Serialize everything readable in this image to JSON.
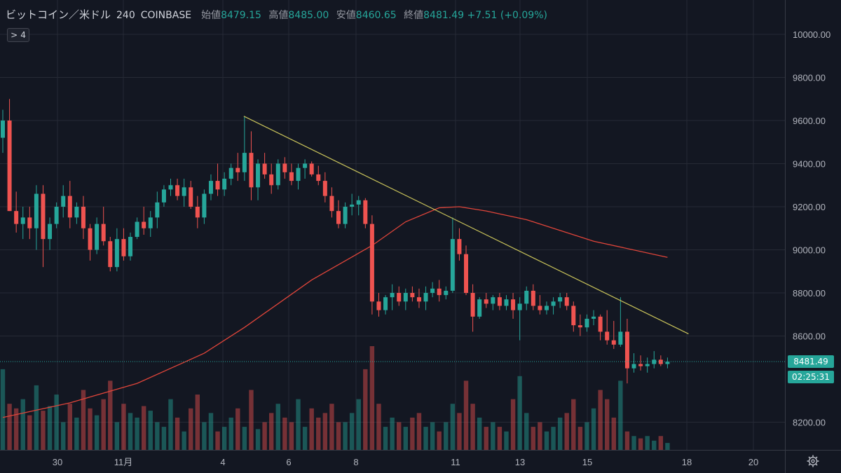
{
  "legend": {
    "symbol": "ビットコイン／米ドル",
    "interval": "240",
    "exchange": "COINBASE",
    "open_label": "始値",
    "open": "8479.15",
    "high_label": "高値",
    "high": "8485.00",
    "low_label": "安値",
    "low": "8460.65",
    "close_label": "終値",
    "close": "8481.49",
    "change": "+7.51 (+0.09%)"
  },
  "indicator_toggle": {
    "arrow": ">",
    "count": "4"
  },
  "last_price_tag": "8481.49",
  "countdown_tag": "02:25:31",
  "colors": {
    "background": "#131722",
    "up": "#26a69a",
    "down": "#ef5350",
    "ma": "#e0453a",
    "trendline": "#c8c25a",
    "grid": "#262a35",
    "axis_text": "#b2b5be"
  },
  "icons": {
    "settings": "gear-icon"
  },
  "chart_data": {
    "type": "candlestick",
    "y_axis": {
      "ticks": [
        10000,
        9800,
        9600,
        9400,
        9200,
        9000,
        8800,
        8600,
        8200
      ],
      "tick_labels": [
        "10000.00",
        "9800.00",
        "9600.00",
        "9400.00",
        "9200.00",
        "9000.00",
        "8800.00",
        "8600.00",
        "8200.00"
      ],
      "ylim": [
        8118,
        10100
      ]
    },
    "x_axis": {
      "tick_labels": [
        "30",
        "11月",
        "4",
        "6",
        "8",
        "11",
        "13",
        "15",
        "18",
        "20"
      ]
    },
    "grid": true,
    "ohlc": [
      [
        9520,
        9650,
        9450,
        9600
      ],
      [
        9600,
        9700,
        9180,
        9180
      ],
      [
        9180,
        9270,
        9080,
        9120
      ],
      [
        9120,
        9200,
        9050,
        9150
      ],
      [
        9150,
        9200,
        9050,
        9100
      ],
      [
        9100,
        9300,
        9000,
        9260
      ],
      [
        9260,
        9300,
        8920,
        9050
      ],
      [
        9050,
        9150,
        9000,
        9120
      ],
      [
        9120,
        9220,
        9100,
        9200
      ],
      [
        9200,
        9300,
        9150,
        9250
      ],
      [
        9250,
        9320,
        9100,
        9150
      ],
      [
        9150,
        9220,
        9120,
        9200
      ],
      [
        9200,
        9250,
        9050,
        9100
      ],
      [
        9100,
        9120,
        8950,
        9000
      ],
      [
        9000,
        9150,
        8980,
        9120
      ],
      [
        9120,
        9200,
        9020,
        9040
      ],
      [
        9040,
        9060,
        8900,
        8920
      ],
      [
        8920,
        9100,
        8900,
        9050
      ],
      [
        9050,
        9100,
        8950,
        8970
      ],
      [
        8970,
        9080,
        8950,
        9060
      ],
      [
        9060,
        9150,
        9050,
        9130
      ],
      [
        9130,
        9200,
        9070,
        9100
      ],
      [
        9100,
        9180,
        9060,
        9150
      ],
      [
        9150,
        9270,
        9100,
        9220
      ],
      [
        9220,
        9300,
        9200,
        9280
      ],
      [
        9280,
        9330,
        9250,
        9300
      ],
      [
        9300,
        9330,
        9230,
        9250
      ],
      [
        9250,
        9330,
        9200,
        9290
      ],
      [
        9290,
        9320,
        9190,
        9200
      ],
      [
        9200,
        9250,
        9100,
        9150
      ],
      [
        9150,
        9280,
        9120,
        9260
      ],
      [
        9260,
        9350,
        9230,
        9320
      ],
      [
        9320,
        9400,
        9250,
        9280
      ],
      [
        9280,
        9360,
        9250,
        9330
      ],
      [
        9330,
        9400,
        9300,
        9380
      ],
      [
        9380,
        9450,
        9320,
        9360
      ],
      [
        9360,
        9620,
        9320,
        9450
      ],
      [
        9450,
        9550,
        9230,
        9290
      ],
      [
        9290,
        9420,
        9230,
        9400
      ],
      [
        9400,
        9450,
        9330,
        9350
      ],
      [
        9350,
        9400,
        9260,
        9300
      ],
      [
        9300,
        9420,
        9280,
        9400
      ],
      [
        9400,
        9430,
        9330,
        9360
      ],
      [
        9360,
        9400,
        9300,
        9320
      ],
      [
        9320,
        9400,
        9280,
        9380
      ],
      [
        9380,
        9420,
        9330,
        9400
      ],
      [
        9400,
        9410,
        9340,
        9350
      ],
      [
        9350,
        9390,
        9300,
        9320
      ],
      [
        9320,
        9360,
        9220,
        9250
      ],
      [
        9250,
        9290,
        9150,
        9180
      ],
      [
        9180,
        9230,
        9100,
        9120
      ],
      [
        9120,
        9220,
        9100,
        9200
      ],
      [
        9200,
        9260,
        9160,
        9210
      ],
      [
        9210,
        9250,
        9160,
        9230
      ],
      [
        9230,
        9240,
        9100,
        9120
      ],
      [
        9120,
        9160,
        8700,
        8760
      ],
      [
        8760,
        8800,
        8690,
        8720
      ],
      [
        8720,
        8790,
        8700,
        8780
      ],
      [
        8780,
        8840,
        8720,
        8800
      ],
      [
        8800,
        8830,
        8740,
        8760
      ],
      [
        8760,
        8820,
        8720,
        8800
      ],
      [
        8800,
        8830,
        8760,
        8780
      ],
      [
        8780,
        8820,
        8730,
        8760
      ],
      [
        8760,
        8830,
        8720,
        8800
      ],
      [
        8800,
        8850,
        8780,
        8820
      ],
      [
        8820,
        8860,
        8760,
        8790
      ],
      [
        8790,
        8830,
        8770,
        8810
      ],
      [
        8810,
        9150,
        8800,
        9050
      ],
      [
        9050,
        9100,
        8950,
        8980
      ],
      [
        8980,
        9020,
        8790,
        8800
      ],
      [
        8800,
        8840,
        8620,
        8690
      ],
      [
        8690,
        8780,
        8680,
        8770
      ],
      [
        8770,
        8800,
        8730,
        8750
      ],
      [
        8750,
        8790,
        8720,
        8780
      ],
      [
        8780,
        8800,
        8720,
        8740
      ],
      [
        8740,
        8790,
        8720,
        8770
      ],
      [
        8770,
        8800,
        8680,
        8720
      ],
      [
        8720,
        8780,
        8580,
        8750
      ],
      [
        8750,
        8830,
        8720,
        8810
      ],
      [
        8810,
        8840,
        8720,
        8740
      ],
      [
        8740,
        8790,
        8700,
        8720
      ],
      [
        8720,
        8760,
        8700,
        8740
      ],
      [
        8740,
        8780,
        8700,
        8760
      ],
      [
        8760,
        8800,
        8730,
        8780
      ],
      [
        8780,
        8800,
        8720,
        8740
      ],
      [
        8740,
        8760,
        8620,
        8650
      ],
      [
        8650,
        8700,
        8600,
        8640
      ],
      [
        8640,
        8700,
        8620,
        8680
      ],
      [
        8680,
        8720,
        8650,
        8690
      ],
      [
        8690,
        8700,
        8580,
        8620
      ],
      [
        8620,
        8720,
        8560,
        8580
      ],
      [
        8580,
        8670,
        8540,
        8560
      ],
      [
        8560,
        8780,
        8550,
        8620
      ],
      [
        8620,
        8680,
        8380,
        8450
      ],
      [
        8450,
        8520,
        8430,
        8470
      ],
      [
        8470,
        8510,
        8440,
        8460
      ],
      [
        8460,
        8500,
        8430,
        8470
      ],
      [
        8470,
        8530,
        8450,
        8490
      ],
      [
        8490,
        8510,
        8460,
        8470
      ],
      [
        8470,
        8500,
        8450,
        8480
      ]
    ],
    "volume": [
      35,
      20,
      18,
      22,
      15,
      28,
      17,
      19,
      24,
      12,
      20,
      14,
      26,
      18,
      15,
      22,
      30,
      12,
      20,
      16,
      14,
      19,
      17,
      12,
      10,
      22,
      14,
      8,
      18,
      24,
      12,
      16,
      8,
      10,
      14,
      18,
      10,
      26,
      9,
      12,
      16,
      20,
      14,
      12,
      22,
      10,
      18,
      14,
      16,
      20,
      12,
      12,
      16,
      22,
      35,
      45,
      20,
      10,
      14,
      12,
      10,
      14,
      16,
      10,
      12,
      8,
      12,
      20,
      16,
      30,
      20,
      14,
      10,
      12,
      10,
      8,
      22,
      32,
      16,
      10,
      12,
      8,
      10,
      14,
      16,
      22,
      10,
      12,
      18,
      26,
      22,
      14,
      30,
      8,
      6,
      5,
      6,
      4,
      6,
      3
    ],
    "moving_average": [
      [
        0,
        8222
      ],
      [
        10,
        8290
      ],
      [
        20,
        8380
      ],
      [
        30,
        8520
      ],
      [
        36,
        8640
      ],
      [
        46,
        8860
      ],
      [
        55,
        9020
      ],
      [
        60,
        9130
      ],
      [
        65,
        9195
      ],
      [
        68,
        9200
      ],
      [
        72,
        9180
      ],
      [
        78,
        9140
      ],
      [
        88,
        9040
      ],
      [
        99,
        8965
      ]
    ],
    "trendline": {
      "from": [
        36,
        9620
      ],
      "to": [
        99,
        8610
      ]
    },
    "price_line": 8481.49
  }
}
